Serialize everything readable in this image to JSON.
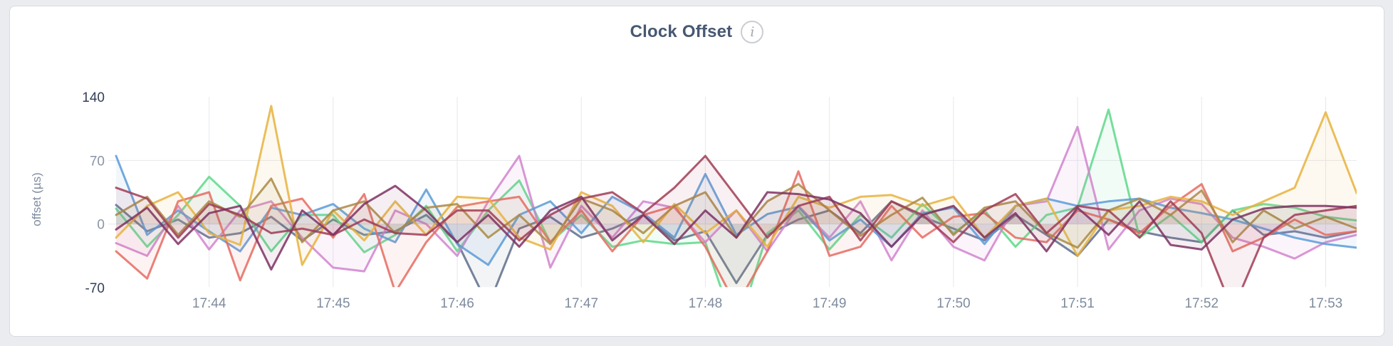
{
  "page": {
    "background": "#eaecef"
  },
  "card": {
    "background": "#ffffff",
    "border_color": "#d8dbe0"
  },
  "header": {
    "title": "Clock Offset",
    "info_icon": "i"
  },
  "axes": {
    "ylabel": "offset (µs)",
    "y_ticks": [
      140,
      70,
      0,
      -70
    ],
    "y_tick_colors": [
      "#333f59",
      "#8a93a6",
      "#8a93a6",
      "#333f59"
    ],
    "x_label_color": "#7e8b9e",
    "ylabel_color": "#7e8b9e",
    "grid_color": "#e7e8ec"
  },
  "chart_data": {
    "type": "line",
    "title": "Clock Offset",
    "ylabel": "offset (µs)",
    "ylim": [
      -70,
      140
    ],
    "y_ticks": [
      140,
      70,
      0,
      -70
    ],
    "x_tick_labels": [
      "17:44",
      "17:45",
      "17:46",
      "17:47",
      "17:48",
      "17:49",
      "17:50",
      "17:51",
      "17:52",
      "17:53"
    ],
    "x_start": "17:43:15",
    "x_interval_seconds": 15,
    "points_per_series": 41,
    "grid": "vertical line each minute; horizontal lines at 70 and 0; values below -70 clipped at plot bottom",
    "legend_position": "none",
    "area_fill": "each line has a very light fill toward the zero line",
    "series": [
      {
        "name": "slate",
        "color": "#5f6d88",
        "values": [
          21,
          -8,
          5,
          -15,
          -10,
          8,
          -18,
          5,
          -12,
          -8,
          10,
          -20,
          -90,
          -5,
          8,
          -15,
          -5,
          10,
          -18,
          -8,
          -65,
          -12,
          5,
          15,
          -10,
          25,
          8,
          -5,
          -18,
          10,
          -12,
          -35,
          5,
          -8,
          -15,
          -20,
          15,
          -12,
          -8,
          -15,
          -8
        ]
      },
      {
        "name": "green",
        "color": "#5ed88a",
        "values": [
          17,
          -25,
          10,
          52,
          20,
          -30,
          10,
          10,
          -31,
          -12,
          20,
          -30,
          15,
          48,
          -20,
          10,
          -25,
          -18,
          -22,
          -20,
          -120,
          -10,
          15,
          -28,
          10,
          -15,
          22,
          -10,
          15,
          -25,
          10,
          18,
          126,
          -15,
          10,
          -20,
          15,
          22,
          18,
          8,
          4
        ]
      },
      {
        "name": "orchid",
        "color": "#d184ce",
        "values": [
          -21,
          -35,
          20,
          -28,
          15,
          25,
          -15,
          -48,
          -52,
          15,
          0,
          -35,
          25,
          75,
          -48,
          20,
          -15,
          25,
          18,
          -20,
          15,
          -30,
          20,
          -15,
          25,
          -40,
          15,
          -25,
          -40,
          20,
          25,
          107,
          -28,
          15,
          28,
          22,
          -15,
          -25,
          -38,
          -20,
          -12
        ]
      },
      {
        "name": "blue",
        "color": "#5b9bd6",
        "values": [
          75,
          -12,
          15,
          -8,
          -30,
          18,
          10,
          22,
          -5,
          -20,
          38,
          -22,
          -45,
          10,
          25,
          -10,
          30,
          12,
          -15,
          55,
          -12,
          11,
          19,
          -18,
          5,
          -25,
          12,
          18,
          -22,
          20,
          28,
          20,
          25,
          28,
          18,
          12,
          5,
          -5,
          -15,
          -22,
          -26
        ]
      },
      {
        "name": "salmon",
        "color": "#e56b60",
        "values": [
          -30,
          -60,
          25,
          35,
          -62,
          20,
          28,
          -15,
          33,
          -75,
          -20,
          19,
          25,
          30,
          -20,
          15,
          -30,
          10,
          20,
          -25,
          -90,
          -30,
          58,
          -35,
          -25,
          20,
          -15,
          8,
          12,
          -15,
          -20,
          15,
          5,
          -10,
          20,
          44,
          -30,
          -15,
          5,
          -12,
          -8
        ]
      },
      {
        "name": "gold",
        "color": "#e7b33e",
        "values": [
          -15,
          20,
          35,
          -10,
          -23,
          130,
          -45,
          15,
          -18,
          25,
          -12,
          30,
          28,
          -15,
          -28,
          35,
          20,
          -20,
          22,
          -10,
          15,
          -25,
          30,
          18,
          30,
          32,
          20,
          30,
          -15,
          20,
          28,
          -35,
          15,
          20,
          30,
          25,
          10,
          25,
          40,
          123,
          34
        ]
      },
      {
        "name": "khaki",
        "color": "#aa8a45",
        "values": [
          10,
          30,
          -12,
          25,
          8,
          50,
          -20,
          15,
          25,
          -10,
          18,
          22,
          -15,
          10,
          -22,
          28,
          15,
          -10,
          20,
          35,
          -15,
          25,
          44,
          15,
          -13,
          10,
          29,
          -12,
          18,
          25,
          -10,
          -26,
          15,
          28,
          10,
          37,
          -20,
          15,
          -5,
          8,
          -5
        ]
      },
      {
        "name": "maroon",
        "color": "#a03c55",
        "values": [
          40,
          28,
          -15,
          22,
          10,
          -10,
          -5,
          -12,
          5,
          -10,
          -12,
          15,
          15,
          -18,
          10,
          28,
          35,
          12,
          40,
          75,
          30,
          -15,
          20,
          30,
          -18,
          25,
          10,
          -20,
          15,
          33,
          -10,
          20,
          15,
          -15,
          25,
          -10,
          -95,
          -15,
          10,
          15,
          20
        ]
      },
      {
        "name": "plum",
        "color": "#7c3162",
        "values": [
          -6,
          18,
          -22,
          12,
          20,
          -50,
          15,
          -12,
          22,
          42,
          15,
          -20,
          10,
          -25,
          15,
          30,
          -18,
          10,
          -22,
          15,
          -15,
          35,
          33,
          27,
          12,
          -25,
          10,
          20,
          -15,
          12,
          -30,
          18,
          -12,
          25,
          -23,
          -28,
          5,
          17,
          20,
          20,
          18
        ]
      }
    ]
  }
}
